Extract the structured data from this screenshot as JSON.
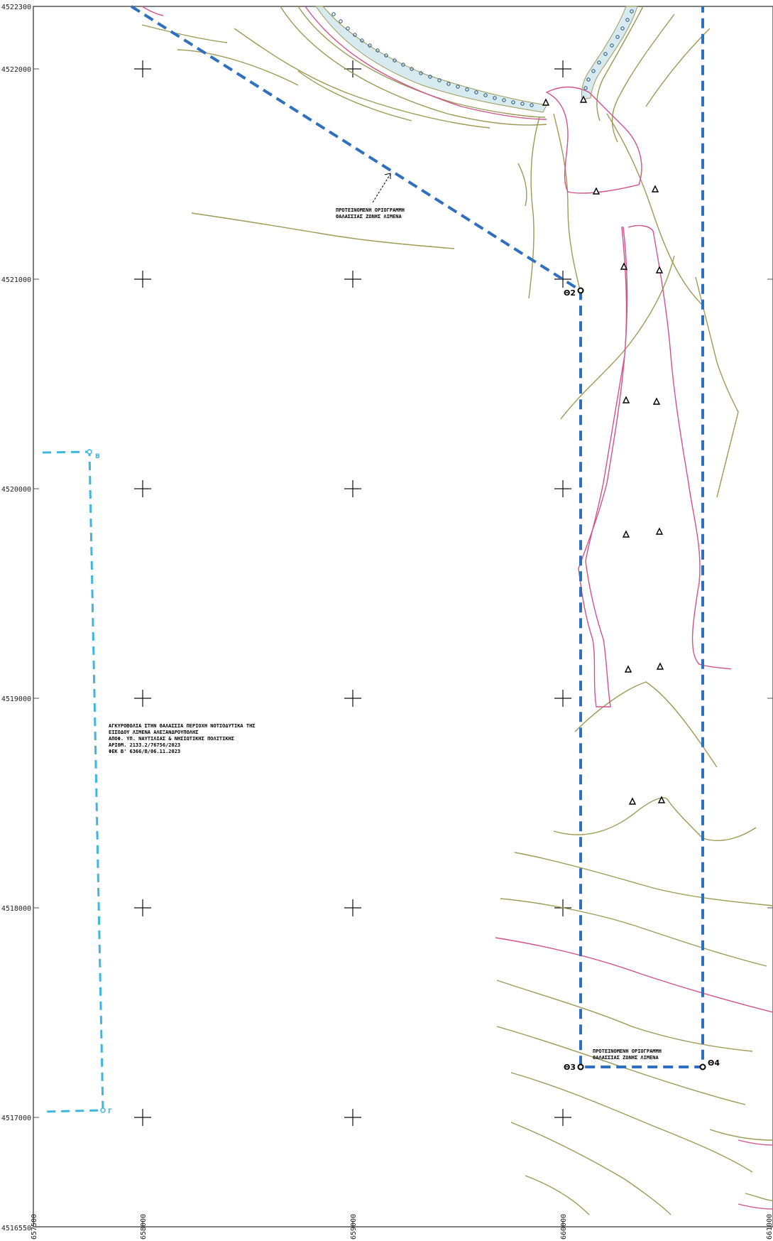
{
  "map": {
    "colors": {
      "frame": "#555555",
      "grid_cross": "#111111",
      "boundary_blue": "#2f6fc0",
      "boundary_cyan": "#3fb6e0",
      "contour_olive": "#9d9a55",
      "contour_pink": "#d0538a",
      "channel_fill": "#d6eaf0"
    },
    "y_axis_labels": [
      "4522300",
      "4522000",
      "4521000",
      "4520000",
      "4519000",
      "4518000",
      "4517000",
      "4516550"
    ],
    "x_axis_labels": [
      "657500",
      "658000",
      "659000",
      "660000",
      "661000"
    ],
    "boundary_points": {
      "p2": "Θ2",
      "p3": "Θ3",
      "p4": "Θ4",
      "cyan_top": "Β",
      "cyan_bottom": "Γ"
    },
    "annotations": {
      "boundary_top": [
        "ΠΡΟΤΕΙΝΟΜΕΝΗ ΟΡΙΟΓΡΑΜΜΗ",
        "ΘΑΛΑΣΣΙΑΣ ΖΩΝΗΣ ΛΙΜΕΝΑ"
      ],
      "boundary_bottom": [
        "ΠΡΟΤΕΙΝΟΜΕΝΗ ΟΡΙΟΓΡΑΜΜΗ",
        "ΘΑΛΑΣΣΙΑΣ ΖΩΝΗΣ ΛΙΜΕΝΑ"
      ],
      "aquaculture": [
        "ΑΓΚΥΡΟΒΟΛΙΑ ΣΤΗΝ ΘΑΛΑΣΣΙΑ ΠΕΡΙΟΧΗ ΝΟΤΙΟΔΥΤΙΚΑ ΤΗΣ",
        "ΕΙΣΟΔΟΥ ΛΙΜΕΝΑ ΑΛΕΞΑΝΔΡΟΥΠΟΛΗΣ",
        "ΑΠΟΦ. ΥΠ. ΝΑΥΤΙΛΙΑΣ & ΝΗΣΙΩΤΙΚΗΣ ΠΟΛΙΤΙΚΗΣ",
        "ΑΡΙΘΜ. 2133.2/76756/2023",
        "ΦΕΚ Β' 6366/Β/06.11.2023"
      ]
    }
  }
}
